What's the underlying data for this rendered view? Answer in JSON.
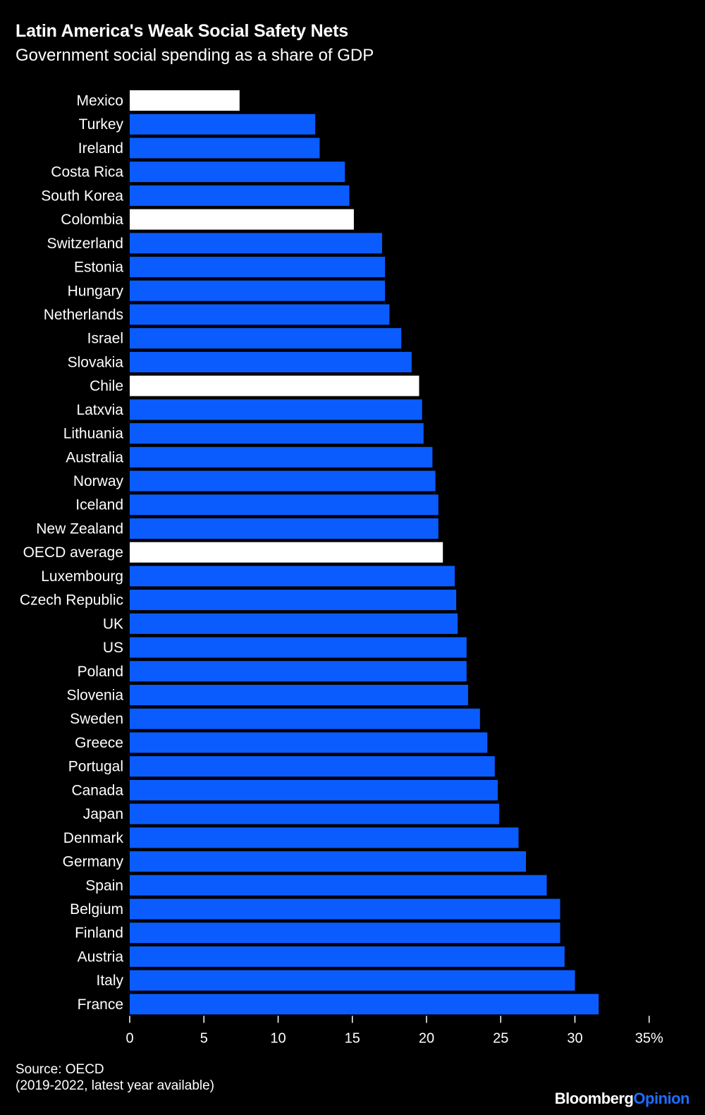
{
  "header": {
    "title": "Latin America's Weak Social Safety Nets",
    "subtitle": "Government social spending as a share of GDP"
  },
  "footer": {
    "source": "Source: OECD",
    "note": "(2019-2022, latest year available)",
    "logo_bloomberg": "Bloomberg",
    "logo_opinion": "Opinion"
  },
  "colors": {
    "default_bar": "#0b5cff",
    "highlight_bar": "#ffffff",
    "background": "#000000"
  },
  "chart_data": {
    "type": "bar",
    "orientation": "horizontal",
    "title": "Latin America's Weak Social Safety Nets",
    "subtitle": "Government social spending as a share of GDP",
    "xlabel": "",
    "ylabel": "",
    "xlim": [
      0,
      35
    ],
    "ticks": [
      0,
      5,
      10,
      15,
      20,
      25,
      30,
      35
    ],
    "tick_labels": [
      "0",
      "5",
      "10",
      "15",
      "20",
      "25",
      "30",
      "35%"
    ],
    "grid": false,
    "categories": [
      "Mexico",
      "Turkey",
      "Ireland",
      "Costa Rica",
      "South Korea",
      "Colombia",
      "Switzerland",
      "Estonia",
      "Hungary",
      "Netherlands",
      "Israel",
      "Slovakia",
      "Chile",
      "Latxvia",
      "Lithuania",
      "Australia",
      "Norway",
      "Iceland",
      "New Zealand",
      "OECD average",
      "Luxembourg",
      "Czech Republic",
      "UK",
      "US",
      "Poland",
      "Slovenia",
      "Sweden",
      "Greece",
      "Portugal",
      "Canada",
      "Japan",
      "Denmark",
      "Germany",
      "Spain",
      "Belgium",
      "Finland",
      "Austria",
      "Italy",
      "France"
    ],
    "values": [
      7.4,
      12.5,
      12.8,
      14.5,
      14.8,
      15.1,
      17.0,
      17.2,
      17.2,
      17.5,
      18.3,
      19.0,
      19.5,
      19.7,
      19.8,
      20.4,
      20.6,
      20.8,
      20.8,
      21.1,
      21.9,
      22.0,
      22.1,
      22.7,
      22.7,
      22.8,
      23.6,
      24.1,
      24.6,
      24.8,
      24.9,
      26.2,
      26.7,
      28.1,
      29.0,
      29.0,
      29.3,
      30.0,
      31.6
    ],
    "highlighted": [
      "Mexico",
      "Colombia",
      "Chile",
      "OECD average"
    ]
  }
}
